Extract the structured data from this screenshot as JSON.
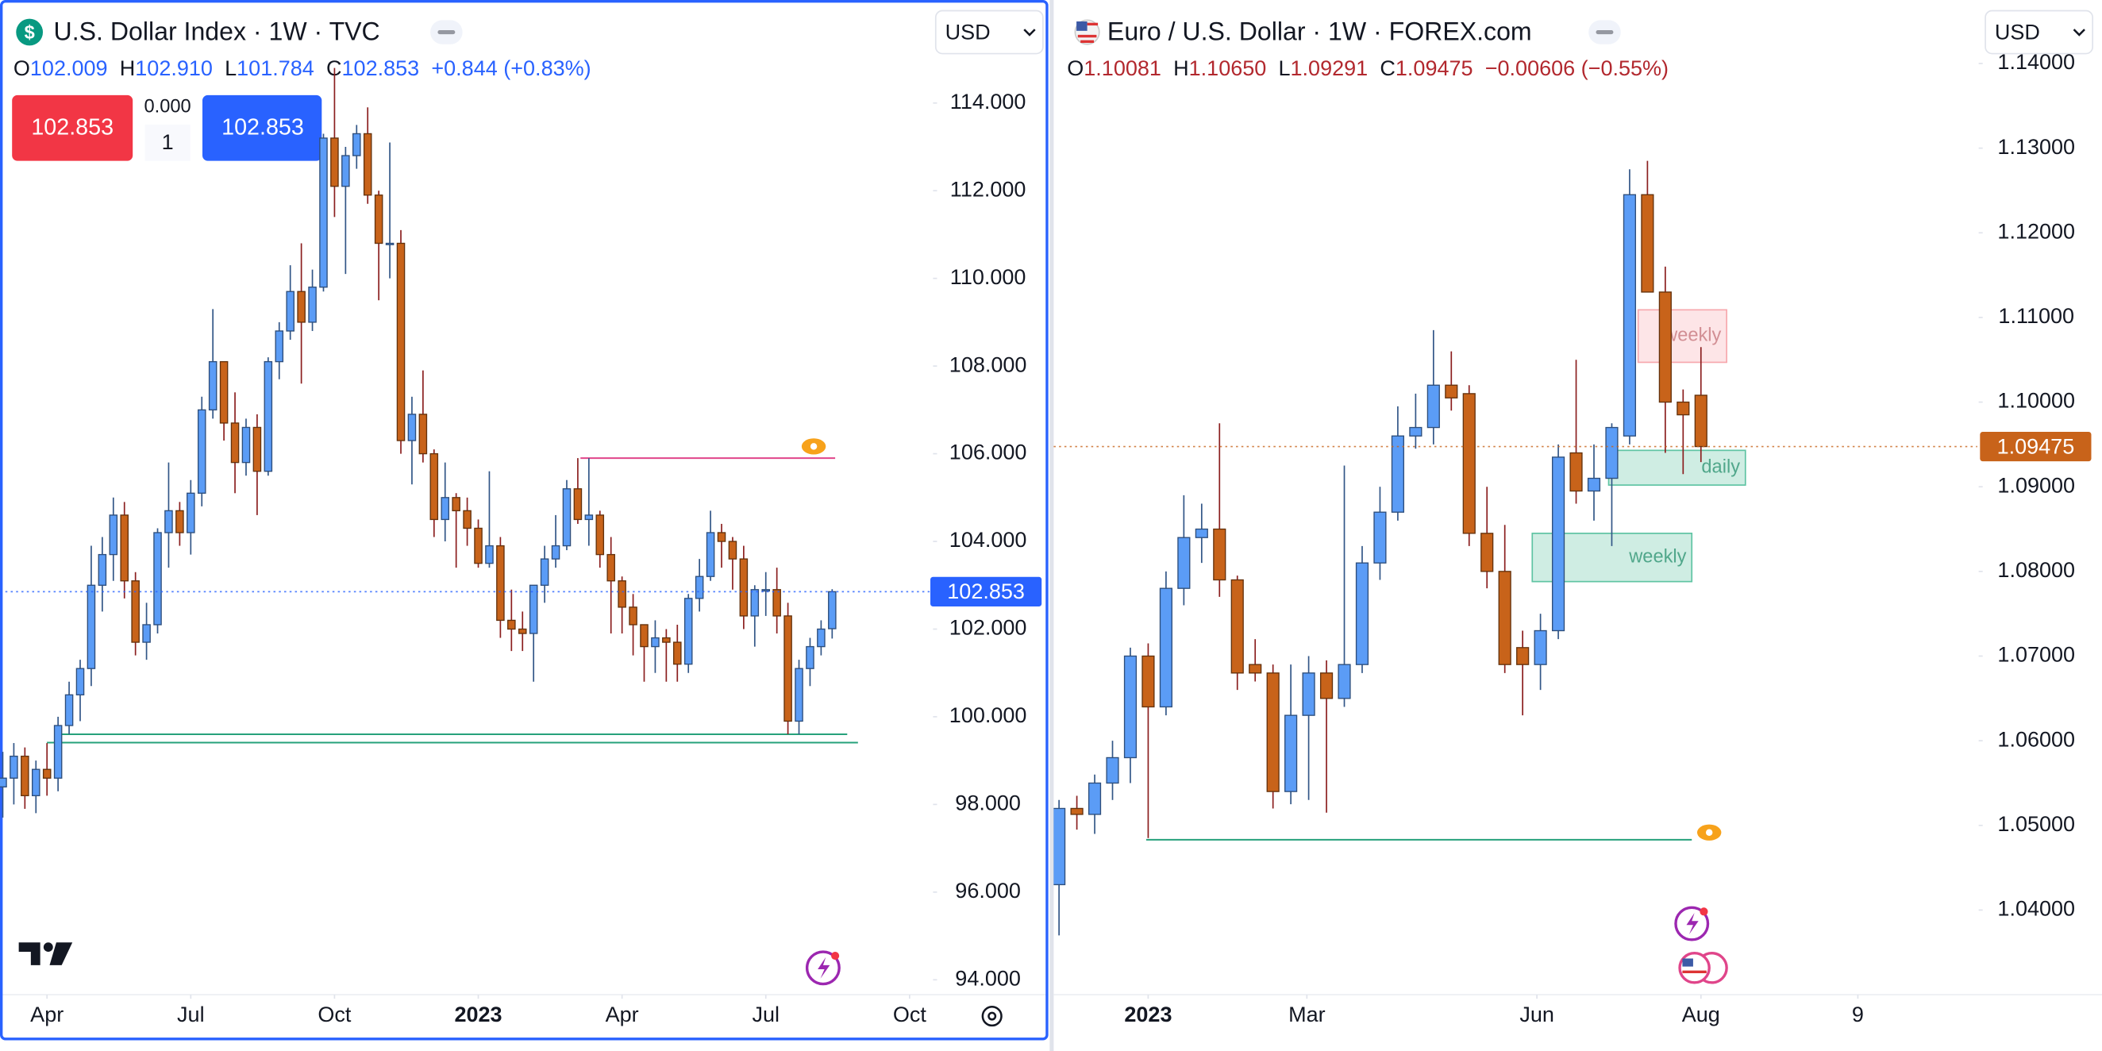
{
  "chart_data": [
    {
      "type": "candlestick",
      "title": "U.S. Dollar Index · 1W · TVC",
      "symbol_icon": "$",
      "currency": "USD",
      "ohlc": [
        {
          "key": "O",
          "value": "102.009"
        },
        {
          "key": "H",
          "value": "102.910"
        },
        {
          "key": "L",
          "value": "101.784"
        },
        {
          "key": "C",
          "value": "102.853"
        }
      ],
      "change": "+0.844 (+0.83%)",
      "sell_price": "102.853",
      "buy_price": "102.853",
      "spread": "0.000",
      "quantity": "1",
      "up_color": "#5b9cf6",
      "down_color": "#c8631a",
      "xlim": [
        -0.25,
        84.0
      ],
      "ylim": [
        93.66,
        116.35
      ],
      "xticks": [
        {
          "value": 4,
          "label": "Apr"
        },
        {
          "value": 17,
          "label": "Jul"
        },
        {
          "value": 30,
          "label": "Oct"
        },
        {
          "value": 43,
          "label": "2023"
        },
        {
          "value": 56,
          "label": "Apr"
        },
        {
          "value": 69,
          "label": "Jul"
        },
        {
          "value": 82,
          "label": "Oct"
        }
      ],
      "yticks": [
        {
          "value": 94,
          "label": "94.000"
        },
        {
          "value": 96,
          "label": "96.000"
        },
        {
          "value": 98,
          "label": "98.000"
        },
        {
          "value": 100,
          "label": "100.000"
        },
        {
          "value": 102,
          "label": "102.000"
        },
        {
          "value": 104,
          "label": "104.000"
        },
        {
          "value": 106,
          "label": "106.000"
        },
        {
          "value": 108,
          "label": "108.000"
        },
        {
          "value": 110,
          "label": "110.000"
        },
        {
          "value": 112,
          "label": "112.000"
        },
        {
          "value": 114,
          "label": "114.000"
        }
      ],
      "last_price": 102.853,
      "last_price_color": "#2962ff",
      "annotations": [
        {
          "kind": "line",
          "value": 105.9,
          "color": "#e0458a"
        },
        {
          "kind": "line",
          "value": 99.6,
          "color": "#26a17b"
        },
        {
          "kind": "line",
          "value": 99.41,
          "color": "#26a17b"
        }
      ],
      "candles": [
        [
          98.4,
          99.2,
          97.7,
          98.6
        ],
        [
          98.6,
          99.4,
          98.0,
          99.1
        ],
        [
          99.1,
          99.3,
          97.9,
          98.2
        ],
        [
          98.2,
          99.0,
          97.8,
          98.8
        ],
        [
          98.8,
          99.4,
          98.2,
          98.6
        ],
        [
          98.6,
          100.0,
          98.3,
          99.8
        ],
        [
          99.8,
          100.8,
          99.6,
          100.5
        ],
        [
          100.5,
          101.3,
          99.9,
          101.1
        ],
        [
          101.1,
          103.9,
          100.7,
          103.0
        ],
        [
          103.0,
          104.1,
          102.4,
          103.7
        ],
        [
          103.7,
          105.0,
          103.1,
          104.6
        ],
        [
          104.6,
          104.9,
          102.7,
          103.1
        ],
        [
          103.1,
          103.3,
          101.4,
          101.7
        ],
        [
          101.7,
          102.6,
          101.3,
          102.1
        ],
        [
          102.1,
          104.3,
          101.9,
          104.2
        ],
        [
          104.2,
          105.8,
          103.4,
          104.7
        ],
        [
          104.7,
          104.9,
          103.9,
          104.2
        ],
        [
          104.2,
          105.4,
          103.7,
          105.1
        ],
        [
          105.1,
          107.3,
          104.8,
          107.0
        ],
        [
          107.0,
          109.3,
          106.8,
          108.1
        ],
        [
          108.1,
          108.1,
          106.3,
          106.7
        ],
        [
          106.7,
          107.4,
          105.1,
          105.8
        ],
        [
          105.8,
          106.8,
          105.5,
          106.6
        ],
        [
          106.6,
          106.9,
          104.6,
          105.6
        ],
        [
          105.6,
          108.2,
          105.5,
          108.1
        ],
        [
          108.1,
          109.0,
          107.7,
          108.8
        ],
        [
          108.8,
          110.3,
          108.6,
          109.7
        ],
        [
          109.7,
          110.8,
          107.6,
          109.0
        ],
        [
          109.0,
          110.2,
          108.8,
          109.8
        ],
        [
          109.8,
          113.3,
          109.7,
          113.2
        ],
        [
          113.2,
          114.8,
          111.4,
          112.1
        ],
        [
          112.1,
          113.0,
          110.1,
          112.8
        ],
        [
          112.8,
          113.5,
          112.5,
          113.3
        ],
        [
          113.3,
          113.9,
          111.7,
          111.9
        ],
        [
          111.9,
          112.0,
          109.5,
          110.8
        ],
        [
          110.8,
          113.1,
          110.0,
          110.8
        ],
        [
          110.8,
          111.1,
          106.0,
          106.3
        ],
        [
          106.3,
          107.3,
          105.3,
          106.9
        ],
        [
          106.9,
          107.9,
          105.8,
          106.0
        ],
        [
          106.0,
          106.1,
          104.1,
          104.5
        ],
        [
          104.5,
          105.8,
          104.0,
          105.0
        ],
        [
          105.0,
          105.1,
          103.4,
          104.7
        ],
        [
          104.7,
          105.0,
          103.9,
          104.3
        ],
        [
          104.3,
          104.5,
          103.4,
          103.5
        ],
        [
          103.5,
          105.6,
          103.4,
          103.9
        ],
        [
          103.9,
          104.1,
          101.8,
          102.2
        ],
        [
          102.2,
          102.9,
          101.5,
          102.0
        ],
        [
          102.0,
          102.4,
          101.5,
          101.9
        ],
        [
          101.9,
          103.0,
          100.8,
          103.0
        ],
        [
          103.0,
          103.9,
          102.6,
          103.6
        ],
        [
          103.6,
          104.6,
          103.4,
          103.9
        ],
        [
          103.9,
          105.4,
          103.8,
          105.2
        ],
        [
          105.2,
          105.9,
          104.4,
          104.5
        ],
        [
          104.5,
          105.9,
          103.9,
          104.6
        ],
        [
          104.6,
          104.7,
          103.4,
          103.7
        ],
        [
          103.7,
          104.1,
          101.9,
          103.1
        ],
        [
          103.1,
          103.2,
          101.9,
          102.5
        ],
        [
          102.5,
          102.8,
          101.4,
          102.1
        ],
        [
          102.1,
          102.1,
          100.8,
          101.6
        ],
        [
          101.6,
          102.2,
          101.0,
          101.8
        ],
        [
          101.8,
          102.0,
          100.8,
          101.7
        ],
        [
          101.7,
          102.1,
          100.8,
          101.2
        ],
        [
          101.2,
          102.8,
          101.0,
          102.7
        ],
        [
          102.7,
          103.6,
          102.4,
          103.2
        ],
        [
          103.2,
          104.7,
          103.1,
          104.2
        ],
        [
          104.2,
          104.4,
          103.4,
          104.0
        ],
        [
          104.0,
          104.1,
          102.9,
          103.6
        ],
        [
          103.6,
          103.9,
          102.0,
          102.3
        ],
        [
          102.3,
          103.0,
          101.6,
          102.9
        ],
        [
          102.9,
          103.3,
          102.3,
          102.9
        ],
        [
          102.9,
          103.4,
          101.9,
          102.3
        ],
        [
          102.3,
          102.6,
          99.6,
          99.9
        ],
        [
          99.9,
          101.3,
          99.6,
          101.1
        ],
        [
          101.1,
          101.8,
          100.7,
          101.6
        ],
        [
          101.6,
          102.2,
          101.4,
          102.0
        ],
        [
          102.009,
          102.91,
          101.784,
          102.853
        ]
      ]
    },
    {
      "type": "candlestick",
      "title": "Euro / U.S. Dollar · 1W · FOREX.com",
      "currency": "USD",
      "ohlc": [
        {
          "key": "O",
          "value": "1.10081"
        },
        {
          "key": "H",
          "value": "1.10650"
        },
        {
          "key": "L",
          "value": "1.09291"
        },
        {
          "key": "C",
          "value": "1.09475"
        }
      ],
      "change": "−0.00606 (−0.55%)",
      "up_color": "#5b9cf6",
      "down_color": "#c8631a",
      "xlim": [
        -0.3,
        51.5
      ],
      "ylim": [
        1.03,
        1.1475
      ],
      "xticks": [
        {
          "value": 5,
          "label": "2023"
        },
        {
          "value": 13.9,
          "label": "Mar"
        },
        {
          "value": 26.8,
          "label": "Jun"
        },
        {
          "value": 36,
          "label": "Aug"
        },
        {
          "value": 44.8,
          "label": "9"
        }
      ],
      "yticks": [
        {
          "value": 1.04,
          "label": "1.04000"
        },
        {
          "value": 1.05,
          "label": "1.05000"
        },
        {
          "value": 1.06,
          "label": "1.06000"
        },
        {
          "value": 1.07,
          "label": "1.07000"
        },
        {
          "value": 1.08,
          "label": "1.08000"
        },
        {
          "value": 1.09,
          "label": "1.09000"
        },
        {
          "value": 1.1,
          "label": "1.10000"
        },
        {
          "value": 1.11,
          "label": "1.11000"
        },
        {
          "value": 1.12,
          "label": "1.12000"
        },
        {
          "value": 1.13,
          "label": "1.13000"
        },
        {
          "value": 1.14,
          "label": "1.14000"
        }
      ],
      "last_price": 1.09475,
      "last_price_color": "#c8631a",
      "annotations": [
        {
          "kind": "line",
          "value": 1.0483,
          "color": "#26a17b"
        },
        {
          "kind": "box",
          "label": "weekly",
          "top": 1.1109,
          "bottom": 1.1047,
          "color": "#f7a8ae"
        },
        {
          "kind": "box",
          "label": "daily",
          "top": 1.0943,
          "bottom": 1.0902,
          "color": "#5fc4a3"
        },
        {
          "kind": "box",
          "label": "weekly",
          "top": 1.0845,
          "bottom": 1.0788,
          "color": "#5fc4a3"
        }
      ],
      "candles": [
        [
          1.043,
          1.053,
          1.037,
          1.052
        ],
        [
          1.052,
          1.0535,
          1.0495,
          1.0513
        ],
        [
          1.0513,
          1.056,
          1.049,
          1.055
        ],
        [
          1.055,
          1.06,
          1.053,
          1.058
        ],
        [
          1.058,
          1.071,
          1.055,
          1.07
        ],
        [
          1.07,
          1.0715,
          1.0485,
          1.064
        ],
        [
          1.064,
          1.08,
          1.063,
          1.078
        ],
        [
          1.078,
          1.089,
          1.076,
          1.084
        ],
        [
          1.084,
          1.088,
          1.081,
          1.085
        ],
        [
          1.085,
          1.0975,
          1.077,
          1.079
        ],
        [
          1.079,
          1.0795,
          1.066,
          1.068
        ],
        [
          1.069,
          1.072,
          1.067,
          1.068
        ],
        [
          1.068,
          1.069,
          1.052,
          1.054
        ],
        [
          1.054,
          1.069,
          1.0525,
          1.063
        ],
        [
          1.063,
          1.07,
          1.053,
          1.068
        ],
        [
          1.068,
          1.0695,
          1.0515,
          1.065
        ],
        [
          1.065,
          1.0925,
          1.064,
          1.069
        ],
        [
          1.069,
          1.083,
          1.068,
          1.081
        ],
        [
          1.081,
          1.09,
          1.079,
          1.087
        ],
        [
          1.087,
          1.0995,
          1.086,
          1.096
        ],
        [
          1.096,
          1.101,
          1.0945,
          1.097
        ],
        [
          1.097,
          1.1085,
          1.095,
          1.102
        ],
        [
          1.102,
          1.106,
          1.099,
          1.1005
        ],
        [
          1.101,
          1.102,
          1.083,
          1.0845
        ],
        [
          1.0845,
          1.09,
          1.078,
          1.08
        ],
        [
          1.08,
          1.0855,
          1.068,
          1.069
        ],
        [
          1.071,
          1.073,
          1.063,
          1.069
        ],
        [
          1.069,
          1.075,
          1.066,
          1.073
        ],
        [
          1.073,
          1.095,
          1.072,
          1.0935
        ],
        [
          1.094,
          1.105,
          1.088,
          1.0895
        ],
        [
          1.0895,
          1.095,
          1.086,
          1.091
        ],
        [
          1.091,
          1.0975,
          1.083,
          1.097
        ],
        [
          1.096,
          1.1275,
          1.095,
          1.1245
        ],
        [
          1.1245,
          1.1285,
          1.113,
          1.113
        ],
        [
          1.113,
          1.116,
          1.094,
          1.1
        ],
        [
          1.1,
          1.1015,
          1.0915,
          1.0985
        ],
        [
          1.10081,
          1.1065,
          1.09291,
          1.09475
        ]
      ]
    }
  ]
}
